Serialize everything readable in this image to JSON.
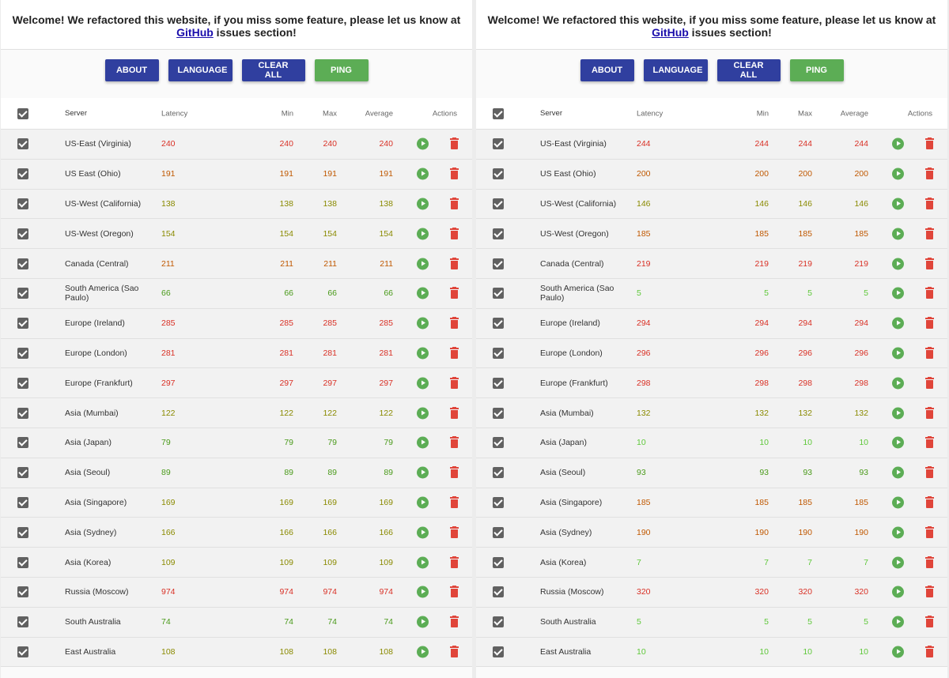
{
  "banner": {
    "line1": "Welcome! We refactored this website, if you miss some feature, please let us know at",
    "link": "GitHub",
    "line2": " issues section!"
  },
  "buttons": {
    "about": "ABOUT",
    "language": "LANGUAGE",
    "clear_all": "CLEAR ALL",
    "ping": "PING"
  },
  "columns": {
    "server": "Server",
    "latency": "Latency",
    "min": "Min",
    "max": "Max",
    "average": "Average",
    "actions": "Actions"
  },
  "colors": {
    "primary": "#303f9f",
    "ping": "#5cad55",
    "delete": "#e0453a",
    "high_latency": "#d93025",
    "low_latency": "#5fc83a"
  },
  "icons": [
    "checkbox-checked-icon",
    "play-circle-icon",
    "trash-icon"
  ],
  "panels": [
    {
      "rows": [
        {
          "server": "US-East (Virginia)",
          "latency": "240",
          "min": "240",
          "max": "240",
          "average": "240",
          "tone": "red"
        },
        {
          "server": "US East (Ohio)",
          "latency": "191",
          "min": "191",
          "max": "191",
          "average": "191",
          "tone": "orange"
        },
        {
          "server": "US-West (California)",
          "latency": "138",
          "min": "138",
          "max": "138",
          "average": "138",
          "tone": "olive"
        },
        {
          "server": "US-West (Oregon)",
          "latency": "154",
          "min": "154",
          "max": "154",
          "average": "154",
          "tone": "olive"
        },
        {
          "server": "Canada (Central)",
          "latency": "211",
          "min": "211",
          "max": "211",
          "average": "211",
          "tone": "orange"
        },
        {
          "server": "South America (Sao Paulo)",
          "latency": "66",
          "min": "66",
          "max": "66",
          "average": "66",
          "tone": "green"
        },
        {
          "server": "Europe (Ireland)",
          "latency": "285",
          "min": "285",
          "max": "285",
          "average": "285",
          "tone": "red"
        },
        {
          "server": "Europe (London)",
          "latency": "281",
          "min": "281",
          "max": "281",
          "average": "281",
          "tone": "red"
        },
        {
          "server": "Europe (Frankfurt)",
          "latency": "297",
          "min": "297",
          "max": "297",
          "average": "297",
          "tone": "red"
        },
        {
          "server": "Asia (Mumbai)",
          "latency": "122",
          "min": "122",
          "max": "122",
          "average": "122",
          "tone": "olive"
        },
        {
          "server": "Asia (Japan)",
          "latency": "79",
          "min": "79",
          "max": "79",
          "average": "79",
          "tone": "green"
        },
        {
          "server": "Asia (Seoul)",
          "latency": "89",
          "min": "89",
          "max": "89",
          "average": "89",
          "tone": "green"
        },
        {
          "server": "Asia (Singapore)",
          "latency": "169",
          "min": "169",
          "max": "169",
          "average": "169",
          "tone": "olive"
        },
        {
          "server": "Asia (Sydney)",
          "latency": "166",
          "min": "166",
          "max": "166",
          "average": "166",
          "tone": "olive"
        },
        {
          "server": "Asia (Korea)",
          "latency": "109",
          "min": "109",
          "max": "109",
          "average": "109",
          "tone": "olive"
        },
        {
          "server": "Russia (Moscow)",
          "latency": "974",
          "min": "974",
          "max": "974",
          "average": "974",
          "tone": "red"
        },
        {
          "server": "South Australia",
          "latency": "74",
          "min": "74",
          "max": "74",
          "average": "74",
          "tone": "green"
        },
        {
          "server": "East Australia",
          "latency": "108",
          "min": "108",
          "max": "108",
          "average": "108",
          "tone": "olive"
        }
      ]
    },
    {
      "rows": [
        {
          "server": "US-East (Virginia)",
          "latency": "244",
          "min": "244",
          "max": "244",
          "average": "244",
          "tone": "red"
        },
        {
          "server": "US East (Ohio)",
          "latency": "200",
          "min": "200",
          "max": "200",
          "average": "200",
          "tone": "orange"
        },
        {
          "server": "US-West (California)",
          "latency": "146",
          "min": "146",
          "max": "146",
          "average": "146",
          "tone": "olive"
        },
        {
          "server": "US-West (Oregon)",
          "latency": "185",
          "min": "185",
          "max": "185",
          "average": "185",
          "tone": "orange"
        },
        {
          "server": "Canada (Central)",
          "latency": "219",
          "min": "219",
          "max": "219",
          "average": "219",
          "tone": "red"
        },
        {
          "server": "South America (Sao Paulo)",
          "latency": "5",
          "min": "5",
          "max": "5",
          "average": "5",
          "tone": "lime"
        },
        {
          "server": "Europe (Ireland)",
          "latency": "294",
          "min": "294",
          "max": "294",
          "average": "294",
          "tone": "red"
        },
        {
          "server": "Europe (London)",
          "latency": "296",
          "min": "296",
          "max": "296",
          "average": "296",
          "tone": "red"
        },
        {
          "server": "Europe (Frankfurt)",
          "latency": "298",
          "min": "298",
          "max": "298",
          "average": "298",
          "tone": "red"
        },
        {
          "server": "Asia (Mumbai)",
          "latency": "132",
          "min": "132",
          "max": "132",
          "average": "132",
          "tone": "olive"
        },
        {
          "server": "Asia (Japan)",
          "latency": "10",
          "min": "10",
          "max": "10",
          "average": "10",
          "tone": "lime"
        },
        {
          "server": "Asia (Seoul)",
          "latency": "93",
          "min": "93",
          "max": "93",
          "average": "93",
          "tone": "green"
        },
        {
          "server": "Asia (Singapore)",
          "latency": "185",
          "min": "185",
          "max": "185",
          "average": "185",
          "tone": "orange"
        },
        {
          "server": "Asia (Sydney)",
          "latency": "190",
          "min": "190",
          "max": "190",
          "average": "190",
          "tone": "orange"
        },
        {
          "server": "Asia (Korea)",
          "latency": "7",
          "min": "7",
          "max": "7",
          "average": "7",
          "tone": "lime"
        },
        {
          "server": "Russia (Moscow)",
          "latency": "320",
          "min": "320",
          "max": "320",
          "average": "320",
          "tone": "red"
        },
        {
          "server": "South Australia",
          "latency": "5",
          "min": "5",
          "max": "5",
          "average": "5",
          "tone": "lime"
        },
        {
          "server": "East Australia",
          "latency": "10",
          "min": "10",
          "max": "10",
          "average": "10",
          "tone": "lime"
        }
      ]
    }
  ]
}
